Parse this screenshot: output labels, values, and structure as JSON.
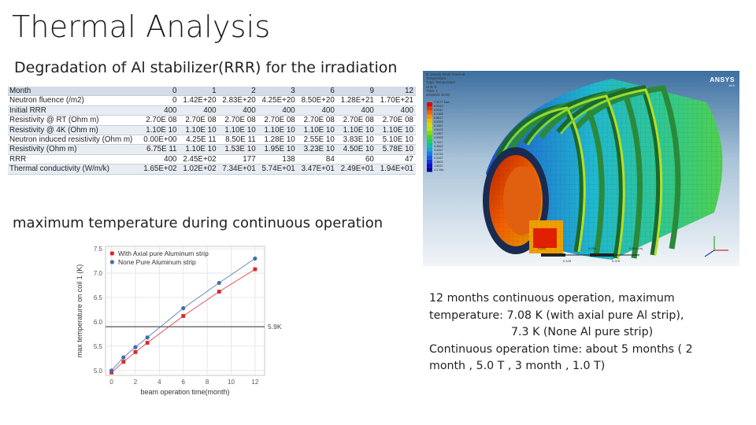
{
  "slide": {
    "title": "Thermal Analysis",
    "subtitle": "Degradation of Al stabilizer(RRR) for the irradiation",
    "section_label": "maximum temperature during continuous  operation"
  },
  "table": {
    "header": [
      "Month",
      "0",
      "1",
      "2",
      "3",
      "6",
      "9",
      "12"
    ],
    "rows": [
      [
        "Neutron fluence (/m2)",
        "0",
        "1.42E+20",
        "2.83E+20",
        "4.25E+20",
        "8.50E+20",
        "1.28E+21",
        "1.70E+21"
      ],
      [
        "Initial RRR",
        "400",
        "400",
        "400",
        "400",
        "400",
        "400",
        "400"
      ],
      [
        "Resistivity @ RT (Ohm m)",
        "2.70E 08",
        "2.70E 08",
        "2.70E 08",
        "2.70E 08",
        "2.70E 08",
        "2.70E 08",
        "2.70E 08"
      ],
      [
        "Resistivity @ 4K (Ohm m)",
        "1.10E 10",
        "1.10E 10",
        "1.10E 10",
        "1.10E 10",
        "1.10E 10",
        "1.10E 10",
        "1.10E 10"
      ],
      [
        "Neutron induced resistivity (Ohm m)",
        "0.00E+00",
        "4.25E 11",
        "8.50E 11",
        "1.28E 10",
        "2.55E 10",
        "3.83E 10",
        "5.10E 10"
      ],
      [
        "Resistivity (Ohm m)",
        "6.75E 11",
        "1.10E 10",
        "1.53E 10",
        "1.95E 10",
        "3.23E 10",
        "4.50E 10",
        "5.78E 10"
      ],
      [
        "RRR",
        "400",
        "2.45E+02",
        "177",
        "138",
        "84",
        "60",
        "47"
      ],
      [
        "Thermal conductivity (W/m/k)",
        "1.65E+02",
        "1.02E+02",
        "7.34E+01",
        "5.74E+01",
        "3.47E+01",
        "2.49E+01",
        "1.94E+01"
      ]
    ]
  },
  "simulation": {
    "header_lines": [
      "B: Steady-State Thermal",
      "Temperature",
      "Type: Temperature",
      "Unit: K",
      "Time: 1",
      "2019/6/3 15:00"
    ],
    "legend_max": "7.3077 Max",
    "legend_labels": [
      "6.9512",
      "6.5947",
      "6.2382",
      "5.8817",
      "5.5252",
      "5.1687",
      "4.8122",
      "4.4557",
      "4.0992",
      "3.7427",
      "3.3862",
      "3.0297",
      "2.6732",
      "2.3167",
      "1.9602",
      "1.6037"
    ],
    "legend_min": "4.2 Min",
    "legend_colors": [
      "#e00000",
      "#f03000",
      "#f86000",
      "#f89000",
      "#f0b800",
      "#e0d800",
      "#b8e800",
      "#80e000",
      "#40d820",
      "#20d060",
      "#10c0a0",
      "#10a8d0",
      "#1080e8",
      "#1058f0",
      "#1030e0",
      "#1010c0",
      "#0000a0"
    ],
    "logo": "ANSYS",
    "version": "19.0",
    "scale_start": "0.000",
    "scale_mid": "0.250",
    "scale_end": "0.500 (m)",
    "scale_q1": "0.125",
    "scale_q3": "0.375"
  },
  "chart_data": {
    "type": "line",
    "xlabel": "beam operation time(month)",
    "ylabel": "max temperature on coil 1 (K)",
    "xlim": [
      -0.5,
      12.8
    ],
    "ylim": [
      4.9,
      7.55
    ],
    "x_ticks": [
      0,
      2,
      4,
      6,
      8,
      10,
      12
    ],
    "y_ticks": [
      5.0,
      5.5,
      6.0,
      6.5,
      7.0,
      7.5
    ],
    "grid": true,
    "legend_position": "top-left",
    "series": [
      {
        "name": "With Axial pure Aluminum strip",
        "color": "#d9262c",
        "marker": "square",
        "x": [
          0,
          1,
          2,
          3,
          6,
          9,
          12
        ],
        "y": [
          4.96,
          5.18,
          5.38,
          5.57,
          6.12,
          6.62,
          7.08
        ]
      },
      {
        "name": "None Pure Aluminum strip",
        "color": "#3f6fa8",
        "marker": "circle",
        "x": [
          0,
          1,
          2,
          3,
          6,
          9,
          12
        ],
        "y": [
          5.0,
          5.27,
          5.48,
          5.68,
          6.28,
          6.8,
          7.3
        ]
      }
    ],
    "reference_line": {
      "y": 5.9,
      "label": "5.9K",
      "color": "#555555"
    }
  },
  "notes": {
    "line1": "12 months continuous operation, maximum",
    "line2": "temperature:  7.08 K (with axial pure Al strip),",
    "line3": "7.3 K (None Al pure strip)",
    "line4": "Continuous operation time: about  5 months ( 2",
    "line5": "month , 5.0 T , 3 month , 1.0 T)"
  }
}
